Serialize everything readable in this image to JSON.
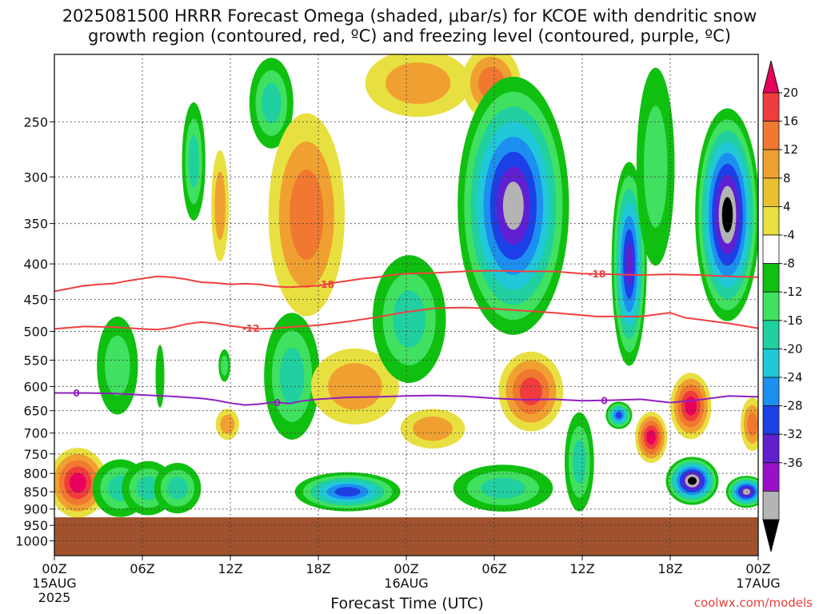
{
  "title_line1": "2025081500 HRRR Forecast Omega (shaded, μbar/s) for KCOE with dendritic snow",
  "title_line2": "growth region (contoured, red, ºC) and freezing level (contoured, purple, ºC)",
  "credit": "coolwx.com/models",
  "chart_data": {
    "type": "heatmap",
    "title": "2025081500 HRRR Forecast Omega (shaded, μbar/s) for KCOE with dendritic snow growth region (contoured, red, ºC) and freezing level (contoured, purple, ºC)",
    "xlabel": "Forecast Time (UTC)",
    "ylabel": "",
    "x_range_hours": [
      0,
      48
    ],
    "y_range_hpa": [
      200,
      1050
    ],
    "y_scale": "log",
    "grid": true,
    "x_ticks": [
      {
        "hour": 0,
        "label": "00Z",
        "sub1": "15AUG",
        "sub2": "2025"
      },
      {
        "hour": 6,
        "label": "06Z",
        "sub1": "",
        "sub2": ""
      },
      {
        "hour": 12,
        "label": "12Z",
        "sub1": "",
        "sub2": ""
      },
      {
        "hour": 18,
        "label": "18Z",
        "sub1": "",
        "sub2": ""
      },
      {
        "hour": 24,
        "label": "00Z",
        "sub1": "16AUG",
        "sub2": ""
      },
      {
        "hour": 30,
        "label": "06Z",
        "sub1": "",
        "sub2": ""
      },
      {
        "hour": 36,
        "label": "12Z",
        "sub1": "",
        "sub2": ""
      },
      {
        "hour": 42,
        "label": "18Z",
        "sub1": "",
        "sub2": ""
      },
      {
        "hour": 48,
        "label": "00Z",
        "sub1": "17AUG",
        "sub2": ""
      }
    ],
    "y_ticks": [
      250,
      300,
      350,
      400,
      450,
      500,
      550,
      600,
      650,
      700,
      750,
      800,
      850,
      900,
      950,
      1000
    ],
    "colorbar": {
      "labels": [
        "20",
        "16",
        "12",
        "8",
        "4",
        "-4",
        "-8",
        "-12",
        "-16",
        "-20",
        "-24",
        "-28",
        "-32",
        "-36"
      ],
      "colors": [
        "#e8005c",
        "#f03c3c",
        "#f07830",
        "#f0a030",
        "#e8c030",
        "#e8e040",
        "#ffffff",
        "#10c010",
        "#40e060",
        "#20d0a0",
        "#20c8d8",
        "#1c90f0",
        "#1c40e8",
        "#6020d0",
        "#9a10c8",
        "#b4b4b4",
        "#000000"
      ]
    },
    "ground_pressure_hpa": 925,
    "ground_color": "#a0522d",
    "series": [
      {
        "name": "-18",
        "color": "#f04040",
        "points": [
          [
            0,
            438
          ],
          [
            2,
            430
          ],
          [
            3,
            428
          ],
          [
            4,
            427
          ],
          [
            5,
            423
          ],
          [
            6,
            420
          ],
          [
            7,
            417
          ],
          [
            8,
            418
          ],
          [
            9,
            421
          ],
          [
            10,
            425
          ],
          [
            11,
            426
          ],
          [
            12,
            428
          ],
          [
            13,
            427
          ],
          [
            14,
            428
          ],
          [
            15,
            431
          ],
          [
            16,
            432
          ],
          [
            17,
            431
          ],
          [
            18,
            430
          ],
          [
            19,
            426
          ],
          [
            20,
            423
          ],
          [
            21,
            420
          ],
          [
            22,
            418
          ],
          [
            23,
            415
          ],
          [
            24,
            413
          ],
          [
            26,
            412
          ],
          [
            28,
            410
          ],
          [
            30,
            409
          ],
          [
            32,
            410
          ],
          [
            34,
            410
          ],
          [
            36,
            413
          ],
          [
            38,
            414
          ],
          [
            40,
            415
          ],
          [
            42,
            414
          ],
          [
            44,
            415
          ],
          [
            46,
            417
          ],
          [
            48,
            418
          ]
        ],
        "labels": [
          {
            "hour": 18.5,
            "text": "-18"
          },
          {
            "hour": 37,
            "text": "-18"
          }
        ]
      },
      {
        "name": "-12",
        "color": "#f04040",
        "points": [
          [
            0,
            496
          ],
          [
            2,
            492
          ],
          [
            4,
            493
          ],
          [
            6,
            496
          ],
          [
            7,
            497
          ],
          [
            8,
            494
          ],
          [
            9,
            488
          ],
          [
            10,
            485
          ],
          [
            11,
            487
          ],
          [
            12,
            491
          ],
          [
            13,
            494
          ],
          [
            14,
            496
          ],
          [
            15,
            495
          ],
          [
            16,
            493
          ],
          [
            18,
            490
          ],
          [
            20,
            484
          ],
          [
            22,
            477
          ],
          [
            24,
            469
          ],
          [
            26,
            463
          ],
          [
            28,
            462
          ],
          [
            30,
            464
          ],
          [
            32,
            467
          ],
          [
            34,
            470
          ],
          [
            36,
            474
          ],
          [
            37,
            476
          ],
          [
            38,
            476
          ],
          [
            40,
            476
          ],
          [
            41,
            473
          ],
          [
            42,
            470
          ],
          [
            43,
            478
          ],
          [
            44,
            481
          ],
          [
            46,
            487
          ],
          [
            48,
            495
          ]
        ],
        "labels": [
          {
            "hour": 13.4,
            "text": "-12"
          }
        ]
      },
      {
        "name": "0",
        "color": "#9020c0",
        "points": [
          [
            0,
            613
          ],
          [
            2,
            613
          ],
          [
            4,
            614
          ],
          [
            6,
            617
          ],
          [
            8,
            620
          ],
          [
            10,
            624
          ],
          [
            11,
            628
          ],
          [
            12,
            634
          ],
          [
            13,
            638
          ],
          [
            14,
            636
          ],
          [
            15,
            632
          ],
          [
            16,
            635
          ],
          [
            17,
            629
          ],
          [
            18,
            626
          ],
          [
            20,
            622
          ],
          [
            22,
            621
          ],
          [
            24,
            619
          ],
          [
            26,
            618
          ],
          [
            28,
            620
          ],
          [
            30,
            624
          ],
          [
            32,
            627
          ],
          [
            34,
            626
          ],
          [
            36,
            629
          ],
          [
            38,
            628
          ],
          [
            40,
            626
          ],
          [
            42,
            633
          ],
          [
            44,
            627
          ],
          [
            46,
            619
          ],
          [
            48,
            621
          ]
        ],
        "labels": [
          {
            "hour": 1.5,
            "text": "0"
          },
          {
            "hour": 15.2,
            "text": "0"
          },
          {
            "hour": 37.5,
            "text": "0"
          }
        ]
      }
    ],
    "omega_blobs": [
      {
        "x": 1.6,
        "p": 825,
        "w": 2.0,
        "h": 190,
        "levels": [
          4,
          8,
          12,
          16,
          20
        ]
      },
      {
        "x": 4.5,
        "p": 840,
        "w": 1.9,
        "h": 160,
        "levels": [
          -4,
          -8,
          -12
        ]
      },
      {
        "x": 6.4,
        "p": 840,
        "w": 1.8,
        "h": 150,
        "levels": [
          -4,
          -8,
          -12
        ]
      },
      {
        "x": 8.4,
        "p": 840,
        "w": 1.6,
        "h": 140,
        "levels": [
          -4,
          -8,
          -12
        ]
      },
      {
        "x": 4.3,
        "p": 560,
        "w": 1.4,
        "h": 180,
        "levels": [
          -4,
          -8
        ]
      },
      {
        "x": 7.2,
        "p": 580,
        "w": 0.3,
        "h": 120,
        "levels": [
          -4
        ]
      },
      {
        "x": 9.5,
        "p": 285,
        "w": 0.8,
        "h": 110,
        "levels": [
          -4,
          -8,
          -12
        ]
      },
      {
        "x": 11.3,
        "p": 330,
        "w": 0.6,
        "h": 120,
        "levels": [
          4,
          8
        ]
      },
      {
        "x": 11.8,
        "p": 680,
        "w": 0.8,
        "h": 70,
        "levels": [
          4,
          8
        ]
      },
      {
        "x": 11.6,
        "p": 560,
        "w": 0.4,
        "h": 60,
        "levels": [
          -4,
          -8
        ]
      },
      {
        "x": 14.8,
        "p": 235,
        "w": 1.5,
        "h": 70,
        "levels": [
          -4,
          -8,
          -12
        ]
      },
      {
        "x": 17.2,
        "p": 340,
        "w": 2.6,
        "h": 220,
        "levels": [
          4,
          8,
          12
        ]
      },
      {
        "x": 16.2,
        "p": 580,
        "w": 1.9,
        "h": 240,
        "levels": [
          -4,
          -8,
          -12
        ]
      },
      {
        "x": 20.0,
        "p": 850,
        "w": 3.6,
        "h": 110,
        "levels": [
          -4,
          -8,
          -12,
          -16,
          -20,
          -24
        ]
      },
      {
        "x": 20.5,
        "p": 600,
        "w": 3.0,
        "h": 150,
        "levels": [
          4,
          8
        ]
      },
      {
        "x": 24.8,
        "p": 220,
        "w": 3.6,
        "h": 60,
        "levels": [
          4,
          8
        ]
      },
      {
        "x": 25.8,
        "p": 690,
        "w": 2.2,
        "h": 90,
        "levels": [
          4,
          8
        ]
      },
      {
        "x": 24.2,
        "p": 480,
        "w": 2.5,
        "h": 200,
        "levels": [
          -4,
          -8,
          -12
        ]
      },
      {
        "x": 30.6,
        "p": 840,
        "w": 3.4,
        "h": 130,
        "levels": [
          -4,
          -8,
          -12
        ]
      },
      {
        "x": 29.8,
        "p": 220,
        "w": 2.0,
        "h": 70,
        "levels": [
          4,
          8,
          12
        ]
      },
      {
        "x": 31.3,
        "p": 330,
        "w": 3.8,
        "h": 280,
        "levels": [
          -4,
          -8,
          -12,
          -16,
          -20,
          -24,
          -28,
          -32
        ]
      },
      {
        "x": 32.5,
        "p": 610,
        "w": 2.2,
        "h": 160,
        "levels": [
          4,
          8,
          12,
          16
        ]
      },
      {
        "x": 35.8,
        "p": 770,
        "w": 1.0,
        "h": 250,
        "levels": [
          -4,
          -8,
          -12
        ]
      },
      {
        "x": 39.2,
        "p": 400,
        "w": 1.2,
        "h": 260,
        "levels": [
          -4,
          -8,
          -12,
          -16,
          -20,
          -24,
          -28
        ]
      },
      {
        "x": 38.5,
        "p": 660,
        "w": 0.9,
        "h": 60,
        "levels": [
          -4,
          -8,
          -12,
          -16,
          -20,
          -24
        ]
      },
      {
        "x": 40.7,
        "p": 710,
        "w": 1.1,
        "h": 120,
        "levels": [
          4,
          8,
          12,
          16,
          20
        ]
      },
      {
        "x": 43.4,
        "p": 640,
        "w": 1.4,
        "h": 140,
        "levels": [
          4,
          8,
          12,
          16,
          20
        ]
      },
      {
        "x": 41.0,
        "p": 290,
        "w": 1.3,
        "h": 190,
        "levels": [
          -4,
          -8
        ]
      },
      {
        "x": 45.9,
        "p": 340,
        "w": 2.2,
        "h": 230,
        "levels": [
          -4,
          -8,
          -12,
          -16,
          -20,
          -24,
          -28,
          -32,
          -36
        ]
      },
      {
        "x": 43.5,
        "p": 820,
        "w": 1.8,
        "h": 130,
        "levels": [
          -4,
          -8,
          -12,
          -16,
          -20,
          -24,
          -28,
          -32,
          -36
        ]
      },
      {
        "x": 47.2,
        "p": 850,
        "w": 1.4,
        "h": 90,
        "levels": [
          -4,
          -8,
          -12,
          -16,
          -20,
          -24,
          -28,
          -32
        ]
      },
      {
        "x": 47.6,
        "p": 680,
        "w": 0.8,
        "h": 120,
        "levels": [
          4,
          8,
          12
        ]
      }
    ]
  }
}
